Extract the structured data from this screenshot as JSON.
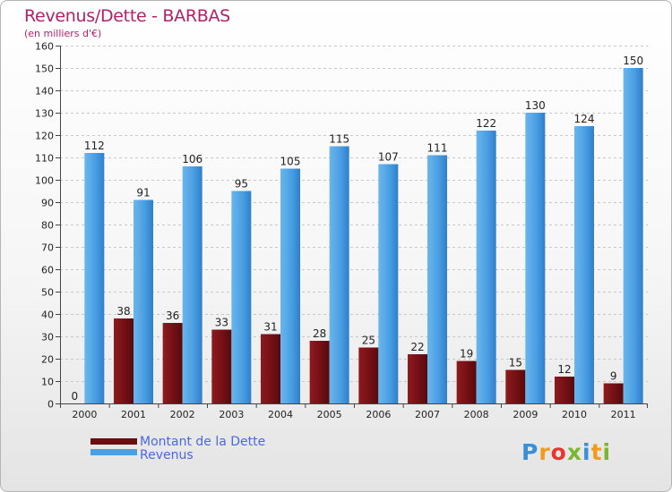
{
  "header": {
    "title": "Revenus/Dette - BARBAS",
    "subtitle": "(en milliers d'€)"
  },
  "chart_data": {
    "type": "bar",
    "title": "Revenus/Dette - BARBAS",
    "ylabel": "(en milliers d'€)",
    "xlabel": "",
    "categories": [
      "2000",
      "2001",
      "2002",
      "2003",
      "2004",
      "2005",
      "2006",
      "2007",
      "2008",
      "2009",
      "2010",
      "2011"
    ],
    "series": [
      {
        "name": "Montant de la Dette",
        "color": "#7a1014",
        "values": [
          0,
          38,
          36,
          33,
          31,
          28,
          25,
          22,
          19,
          15,
          12,
          9
        ]
      },
      {
        "name": "Revenus",
        "color": "#3f93dd",
        "values": [
          112,
          91,
          106,
          95,
          105,
          115,
          107,
          111,
          122,
          130,
          124,
          150
        ]
      }
    ],
    "ylim": [
      0,
      160
    ],
    "yticks": [
      0,
      10,
      20,
      30,
      40,
      50,
      60,
      70,
      80,
      90,
      100,
      110,
      120,
      130,
      140,
      150,
      160
    ],
    "grid": true,
    "legend": "bottom-left"
  },
  "legend": {
    "items": [
      {
        "label": "Montant de la Dette",
        "color": "#6b0d10"
      },
      {
        "label": "Revenus",
        "color": "#4a9fe2"
      }
    ]
  },
  "brand": {
    "letters": [
      "P",
      "r",
      "o",
      "x",
      "i",
      "t",
      "i"
    ],
    "colors": [
      "#3a8fd6",
      "#f29a1b",
      "#e8352e",
      "#7bb72e",
      "#3a8fd6",
      "#f29a1b",
      "#7bb72e"
    ]
  }
}
